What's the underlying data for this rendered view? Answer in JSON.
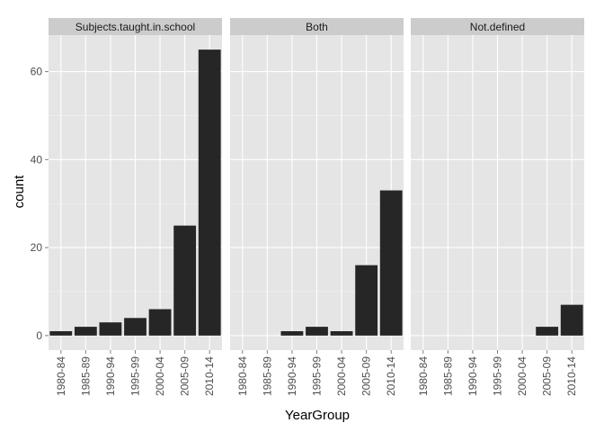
{
  "chart_data": {
    "type": "bar",
    "facet_by": "",
    "xlabel": "YearGroup",
    "ylabel": "count",
    "ylim": [
      -3.3,
      68.3
    ],
    "yticks": [
      0,
      20,
      40,
      60
    ],
    "categories": [
      "1980-84",
      "1985-89",
      "1990-94",
      "1995-99",
      "2000-04",
      "2005-09",
      "2010-14"
    ],
    "grid": true,
    "colors": {
      "bar": "#262626",
      "panel_bg": "#e5e5e5",
      "strip_bg": "#cccccc",
      "grid_major": "#ffffff",
      "grid_minor": "#f2f2f2"
    },
    "panels": [
      {
        "label": "Subjects.taught.in.school",
        "values": [
          1,
          2,
          3,
          4,
          6,
          25,
          65
        ]
      },
      {
        "label": "Both",
        "values": [
          0,
          0,
          1,
          2,
          1,
          16,
          33
        ]
      },
      {
        "label": "Not.defined",
        "values": [
          0,
          0,
          0,
          0,
          0,
          2,
          7
        ]
      }
    ]
  }
}
